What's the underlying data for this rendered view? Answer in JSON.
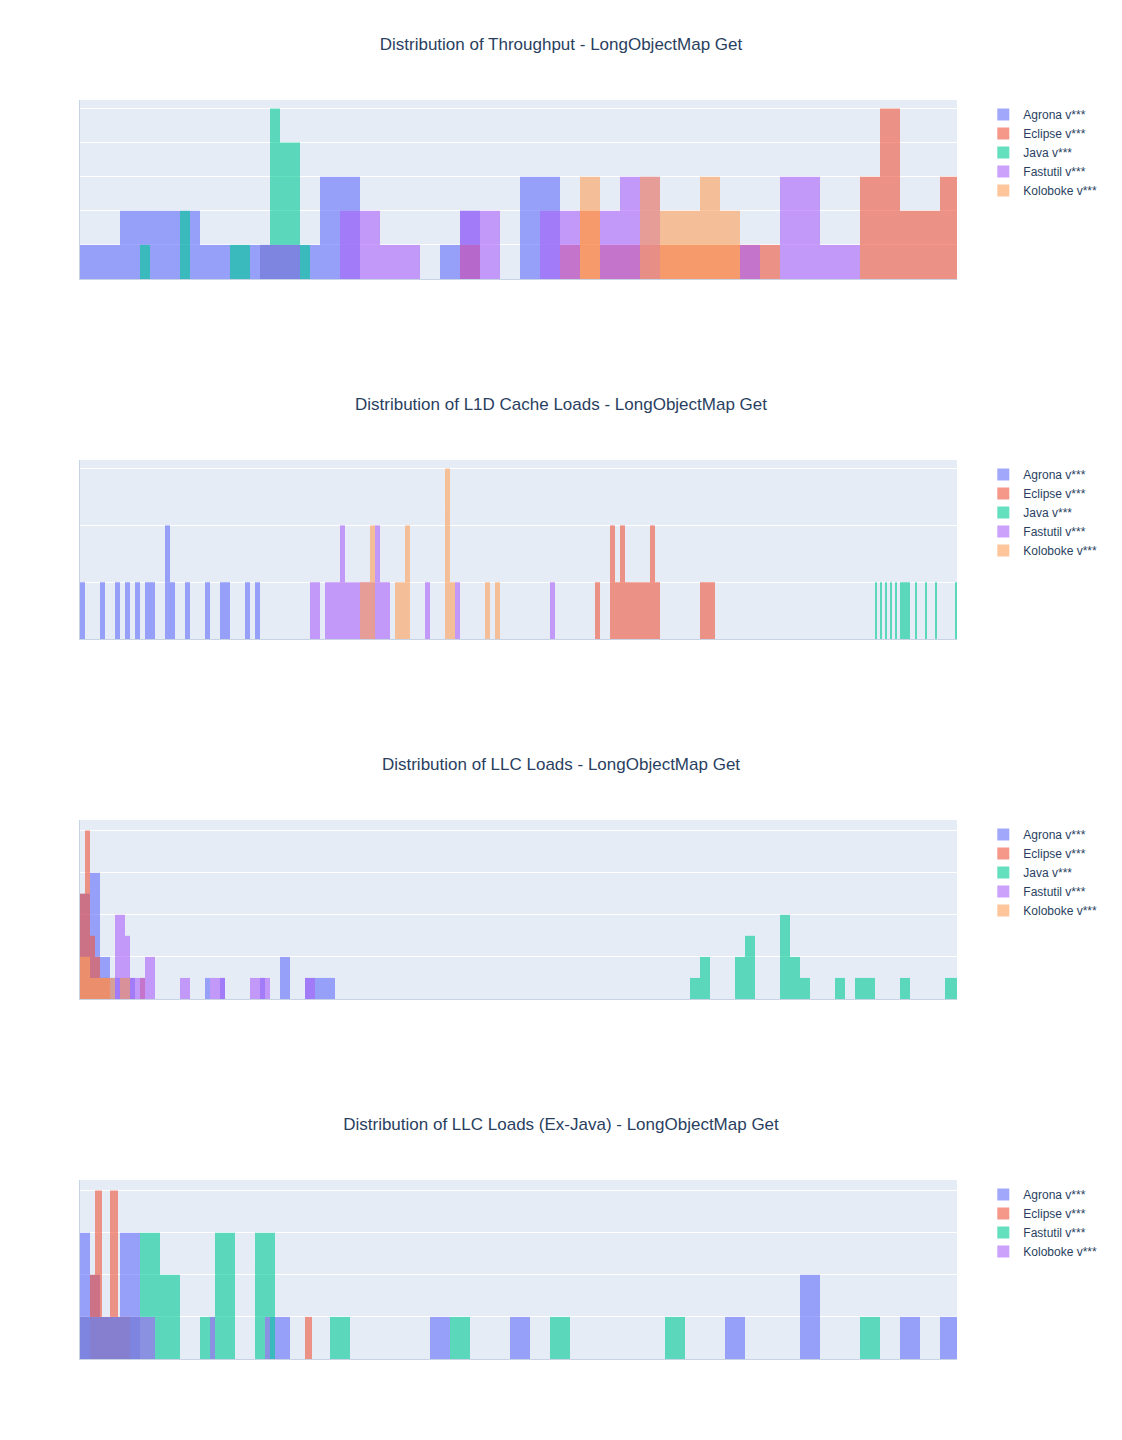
{
  "chart_data": [
    {
      "type": "histogram",
      "title": "Distribution of Throughput - LongObjectMap Get",
      "xlim": [
        0,
        43.85
      ],
      "ylim": [
        0,
        5.25
      ],
      "yticks": [
        0,
        1,
        2,
        3,
        4,
        5
      ],
      "grid": true,
      "legend": "right",
      "tick_labels": false,
      "series": [
        {
          "name": "Agrona v***",
          "color": "#636efa",
          "bins": [
            0,
            1,
            2,
            3,
            4,
            5,
            6,
            7,
            8,
            9,
            10,
            11,
            12,
            13,
            14,
            15,
            16,
            17,
            18,
            19,
            20,
            21,
            22,
            23,
            24,
            25
          ],
          "values": [
            1,
            1,
            2,
            2,
            2,
            2,
            1,
            1,
            1,
            1,
            1,
            1,
            3,
            3,
            0,
            0,
            0,
            0,
            1,
            2,
            0,
            0,
            3,
            3,
            0
          ]
        },
        {
          "name": "Eclipse v***",
          "color": "#EF553B",
          "bins": [
            19,
            20,
            21,
            22,
            23,
            24,
            25,
            26,
            27,
            28,
            29,
            30,
            31,
            32,
            33,
            34,
            35,
            36,
            37,
            38,
            39,
            40,
            41,
            42,
            43,
            44
          ],
          "values": [
            1,
            0,
            0,
            0,
            0,
            1,
            2,
            1,
            1,
            1,
            1,
            1,
            1,
            1,
            1,
            1,
            0,
            0,
            0,
            0,
            3,
            5,
            2,
            2,
            3
          ]
        },
        {
          "name": "Java v***",
          "color": "#00cc96",
          "bins": [
            3,
            3.5,
            4,
            4.5,
            5,
            5.5,
            6,
            6.5,
            7,
            7.5,
            8,
            8.5,
            9,
            9.5,
            10,
            10.5,
            11,
            11.5
          ],
          "values": [
            1,
            0,
            0,
            0,
            2,
            0,
            0,
            0,
            0,
            1,
            1,
            0,
            1,
            5,
            4,
            4,
            1
          ]
        },
        {
          "name": "Fastutil v***",
          "color": "#ab63fa",
          "bins": [
            9,
            10,
            11,
            12,
            13,
            14,
            15,
            16,
            17,
            18,
            19,
            20,
            21,
            22,
            23,
            24,
            25,
            26,
            27,
            28,
            29,
            30,
            31,
            32,
            33,
            34,
            35,
            36,
            37,
            38,
            39
          ],
          "values": [
            1,
            1,
            0,
            0,
            2,
            2,
            1,
            1,
            0,
            0,
            2,
            2,
            0,
            0,
            2,
            2,
            0,
            2,
            3,
            3,
            0,
            0,
            0,
            0,
            1,
            0,
            3,
            3,
            1,
            1
          ]
        },
        {
          "name": "Koloboke v***",
          "color": "#FFA15A",
          "bins": [
            25,
            26,
            27,
            28,
            29,
            30,
            31,
            32,
            33
          ],
          "values": [
            3,
            0,
            0,
            3,
            2,
            2,
            3,
            2
          ]
        }
      ]
    },
    {
      "type": "histogram",
      "title": "Distribution of L1D Cache Loads - LongObjectMap Get",
      "xlim": [
        0,
        43.85
      ],
      "ylim": [
        0,
        3.15
      ],
      "yticks": [
        0,
        1,
        2,
        3
      ],
      "grid": true,
      "legend": "right",
      "tick_labels": false,
      "series": [
        {
          "name": "Agrona v***",
          "color": "#636efa",
          "bins": [
            0,
            0.25,
            1,
            1.25,
            1.75,
            2,
            2.25,
            2.5,
            2.75,
            3,
            3.25,
            3.75,
            4.25,
            4.5,
            4.75,
            5.25,
            5.5,
            6.25,
            6.5,
            7,
            7.5,
            8.25,
            8.5,
            8.75,
            9
          ],
          "values": [
            1,
            0,
            1,
            0,
            1,
            0,
            1,
            0,
            1,
            0,
            1,
            0,
            2,
            1,
            0,
            1,
            0,
            1,
            0,
            1,
            0,
            1,
            0,
            1
          ]
        },
        {
          "name": "Eclipse v***",
          "color": "#EF553B",
          "bins": [
            25.75,
            26,
            26.5,
            26.75,
            27,
            27.25,
            27.5,
            28.5,
            28.75,
            29,
            31,
            31.75
          ],
          "values": [
            1,
            0,
            2,
            1,
            2,
            1,
            1,
            2,
            1,
            0,
            1
          ]
        },
        {
          "name": "Java v***",
          "color": "#00cc96",
          "bins": [
            39.75,
            39.85,
            40,
            40.1,
            40.25,
            40.35,
            40.5,
            40.6,
            40.75,
            40.85,
            41,
            41.5,
            41.75,
            41.85,
            42.25,
            42.35,
            42.75,
            42.85,
            43.75,
            43.85
          ],
          "values": [
            1,
            0,
            1,
            0,
            1,
            0,
            1,
            0,
            1,
            0,
            1,
            0,
            1,
            0,
            1,
            0,
            1,
            0,
            1
          ]
        },
        {
          "name": "Fastutil v***",
          "color": "#ab63fa",
          "bins": [
            11.5,
            12,
            12.25,
            13,
            13.25,
            14.75,
            15,
            15.5,
            17.25,
            17.5,
            18.75,
            19,
            23.5,
            23.75
          ],
          "values": [
            1,
            0,
            1,
            2,
            1,
            2,
            1,
            0,
            1,
            0,
            1,
            0,
            1
          ]
        },
        {
          "name": "Koloboke v***",
          "color": "#FFA15A",
          "bins": [
            14,
            14.5,
            14.75,
            15.75,
            16,
            16.25,
            16.5,
            18.25,
            18.5,
            18.75,
            20.25,
            20.5,
            20.75,
            21
          ],
          "values": [
            1,
            2,
            0,
            1,
            1,
            2,
            0,
            3,
            1,
            0,
            1,
            0,
            1
          ]
        }
      ]
    },
    {
      "type": "histogram",
      "title": "Distribution of LLC Loads - LongObjectMap Get",
      "xlim": [
        0,
        43.85
      ],
      "ylim": [
        0,
        8.5
      ],
      "yticks": [
        0,
        2,
        4,
        6,
        8
      ],
      "grid": true,
      "legend": "right",
      "tick_labels": false,
      "series": [
        {
          "name": "Agrona v***",
          "color": "#636efa",
          "bins": [
            0,
            0.5,
            1,
            1.5,
            2.75,
            6.25,
            6.5,
            7,
            7.25,
            9,
            9.25,
            10,
            10.5,
            11.25,
            12.75
          ],
          "values": [
            5,
            6,
            2,
            1,
            0,
            1,
            0,
            1,
            0,
            1,
            0,
            2,
            0,
            1
          ]
        },
        {
          "name": "Eclipse v***",
          "color": "#EF553B",
          "bins": [
            0,
            0.25,
            0.5,
            0.75,
            1,
            1.5,
            3,
            3.25
          ],
          "values": [
            5,
            8,
            3,
            2,
            1,
            0,
            1
          ]
        },
        {
          "name": "Java v***",
          "color": "#00cc96",
          "bins": [
            30.5,
            31,
            31.5,
            32.75,
            33.25,
            33.75,
            35,
            35.5,
            36,
            36.5,
            37.75,
            38.25,
            38.75,
            39.75,
            41,
            41.5,
            43.25,
            43.85
          ],
          "values": [
            1,
            2,
            0,
            2,
            3,
            0,
            4,
            2,
            1,
            0,
            1,
            0,
            1,
            0,
            1,
            0,
            1
          ]
        },
        {
          "name": "Fastutil v***",
          "color": "#ab63fa",
          "bins": [
            1.75,
            2.25,
            2.5,
            3,
            3.25,
            3.75,
            5,
            5.5,
            6.5,
            7.25,
            8.5,
            9.5,
            11.25,
            11.75
          ],
          "values": [
            4,
            3,
            1,
            1,
            2,
            0,
            1,
            0,
            1,
            0,
            1,
            0,
            1
          ]
        },
        {
          "name": "Koloboke v***",
          "color": "#FFA15A",
          "bins": [
            0,
            0.5,
            1,
            1.75,
            2,
            2.5
          ],
          "values": [
            2,
            1,
            1,
            0,
            1
          ]
        }
      ]
    },
    {
      "type": "histogram",
      "title": "Distribution of LLC Loads (Ex-Java) - LongObjectMap Get",
      "xlim": [
        0,
        43.85
      ],
      "ylim": [
        0,
        4.25
      ],
      "yticks": [
        0,
        1,
        2,
        3,
        4
      ],
      "grid": true,
      "legend": "right",
      "tick_labels": false,
      "series": [
        {
          "name": "Agrona v***",
          "color": "#636efa",
          "bins": [
            0,
            0.5,
            1,
            2,
            3,
            9.5,
            10.5,
            17.5,
            18.5,
            21.5,
            22.5,
            32.25,
            33.25,
            36,
            37,
            41,
            42,
            43,
            43.85
          ],
          "values": [
            3,
            2,
            1,
            3,
            0,
            1,
            0,
            1,
            0,
            1,
            0,
            1,
            0,
            2,
            0,
            1,
            0,
            1
          ]
        },
        {
          "name": "Eclipse v***",
          "color": "#EF553B",
          "bins": [
            0.5,
            0.75,
            1.1,
            1.5,
            1.9,
            2.5,
            11.25,
            11.6
          ],
          "values": [
            2,
            4,
            1,
            4,
            1,
            0,
            1
          ]
        },
        {
          "name": "Fastutil v***",
          "color": "#00cc96",
          "bins": [
            0,
            3,
            4,
            5,
            6,
            6.75,
            7.75,
            8.75,
            9.75,
            12.5,
            13.5,
            18.5,
            19.5,
            23.5,
            24.5,
            29.25,
            30.25,
            39,
            40
          ],
          "values": [
            1,
            3,
            2,
            0,
            1,
            3,
            0,
            3,
            0,
            1,
            0,
            1,
            0,
            1,
            0,
            1,
            0,
            1
          ]
        },
        {
          "name": "Koloboke v***",
          "color": "#ab63fa",
          "bins": [
            0,
            3.75,
            6.5,
            6.75,
            9.25,
            9.5
          ],
          "values": [
            1,
            0,
            1,
            0,
            1
          ]
        }
      ]
    }
  ]
}
